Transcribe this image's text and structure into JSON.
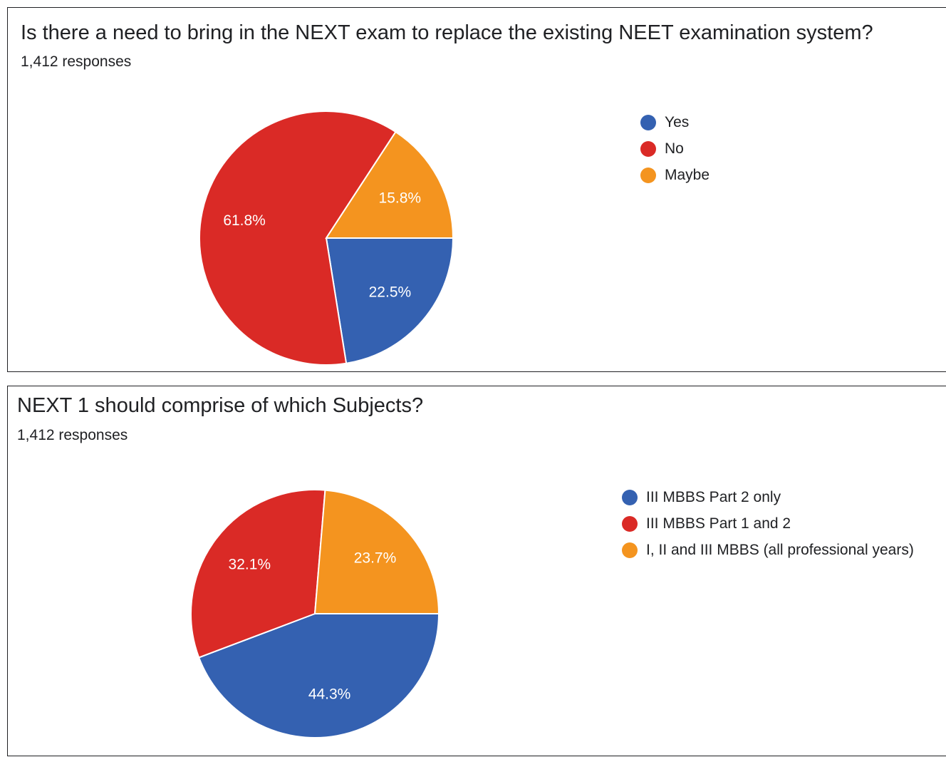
{
  "chart_data": [
    {
      "type": "pie",
      "title": "Is there a need to bring in the NEXT exam to replace the existing NEET examination system?",
      "subtitle": "1,412 responses",
      "legend_position": "right",
      "categories": [
        "Yes",
        "No",
        "Maybe"
      ],
      "values": [
        22.5,
        61.8,
        15.8
      ],
      "labels": [
        "22.5%",
        "61.8%",
        "15.8%"
      ],
      "colors": [
        "#3461b1",
        "#da2a26",
        "#f4941f"
      ]
    },
    {
      "type": "pie",
      "title": "NEXT 1 should comprise of which Subjects?",
      "subtitle": "1,412 responses",
      "legend_position": "right",
      "categories": [
        "III MBBS Part 2 only",
        "III MBBS Part 1 and 2",
        "I, II and III MBBS (all professional years)"
      ],
      "values": [
        44.3,
        32.1,
        23.7
      ],
      "labels": [
        "44.3%",
        "32.1%",
        "23.7%"
      ],
      "colors": [
        "#3461b1",
        "#da2a26",
        "#f4941f"
      ]
    }
  ]
}
